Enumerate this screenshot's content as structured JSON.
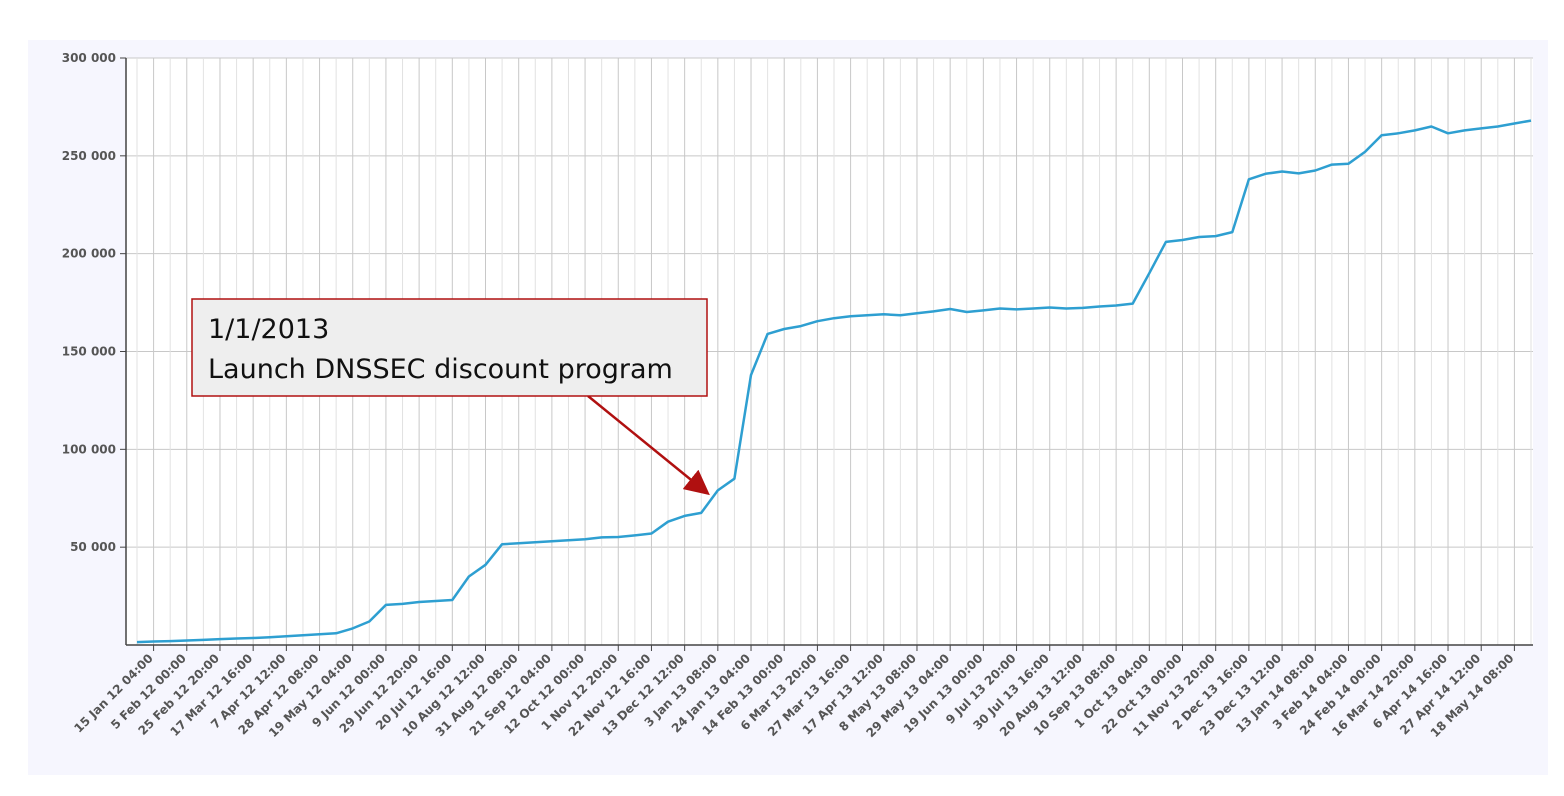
{
  "chart_data": {
    "type": "line",
    "x": [
      null,
      "15 Jan 12 04:00",
      null,
      "5 Feb 12 00:00",
      null,
      "25 Feb 12 20:00",
      null,
      "17 Mar 12 16:00",
      null,
      "7 Apr 12 12:00",
      null,
      "28 Apr 12 08:00",
      null,
      "19 May 12 04:00",
      null,
      "9 Jun 12 00:00",
      null,
      "29 Jun 12 20:00",
      null,
      "20 Jul 12 16:00",
      null,
      "10 Aug 12 12:00",
      null,
      "31 Aug 12 08:00",
      null,
      "21 Sep 12 04:00",
      null,
      "12 Oct 12 00:00",
      null,
      "1 Nov 12 20:00",
      null,
      "22 Nov 12 16:00",
      null,
      "13 Dec 12 12:00",
      null,
      "3 Jan 13 08:00",
      null,
      "24 Jan 13 04:00",
      null,
      "14 Feb 13 00:00",
      null,
      "6 Mar 13 20:00",
      null,
      "27 Mar 13 16:00",
      null,
      "17 Apr 13 12:00",
      null,
      "8 May 13 08:00",
      null,
      "29 May 13 04:00",
      null,
      "19 Jun 13 00:00",
      null,
      "9 Jul 13 20:00",
      null,
      "30 Jul 13 16:00",
      null,
      "20 Aug 13 12:00",
      null,
      "10 Sep 13 08:00",
      null,
      "1 Oct 13 04:00",
      null,
      "22 Oct 13 00:00",
      null,
      "11 Nov 13 20:00",
      null,
      "2 Dec 13 16:00",
      null,
      "23 Dec 13 12:00",
      null,
      "13 Jan 14 08:00",
      null,
      "3 Feb 14 04:00",
      null,
      "24 Feb 14 00:00",
      null,
      "16 Mar 14 20:00",
      null,
      "6 Apr 14 16:00",
      null,
      "27 Apr 14 12:00",
      null,
      "18 May 14 08:00",
      null
    ],
    "values": [
      1500,
      1800,
      2000,
      2300,
      2600,
      3000,
      3300,
      3600,
      4000,
      4500,
      5000,
      5500,
      6000,
      8500,
      12000,
      20500,
      21000,
      22000,
      22500,
      23000,
      35000,
      41000,
      51500,
      52000,
      52500,
      53000,
      53500,
      54000,
      55000,
      55200,
      56000,
      57000,
      63000,
      66000,
      67500,
      79000,
      85000,
      138000,
      159000,
      161500,
      163000,
      165500,
      167000,
      168000,
      168500,
      169000,
      168500,
      169500,
      170500,
      171700,
      170200,
      171000,
      172000,
      171500,
      172000,
      172500,
      172000,
      172300,
      173000,
      173500,
      174500,
      190000,
      206000,
      207000,
      208500,
      209000,
      211000,
      238000,
      240800,
      242000,
      241000,
      242500,
      245500,
      246000,
      252000,
      260500,
      261500,
      263000,
      265000,
      261500,
      263000,
      264000,
      265000,
      266500,
      268000
    ],
    "color": "#2e9fd1",
    "ylim": [
      0,
      300000
    ],
    "yticks": [
      {
        "value": 50000,
        "label": "50 000"
      },
      {
        "value": 100000,
        "label": "100 000"
      },
      {
        "value": 150000,
        "label": "150 000"
      },
      {
        "value": 200000,
        "label": "200 000"
      },
      {
        "value": 250000,
        "label": "250 000"
      },
      {
        "value": 300000,
        "label": "300 000"
      }
    ],
    "grid": true,
    "annotation": {
      "lines": [
        "1/1/2013",
        "Launch DNSSEC discount program"
      ]
    }
  }
}
